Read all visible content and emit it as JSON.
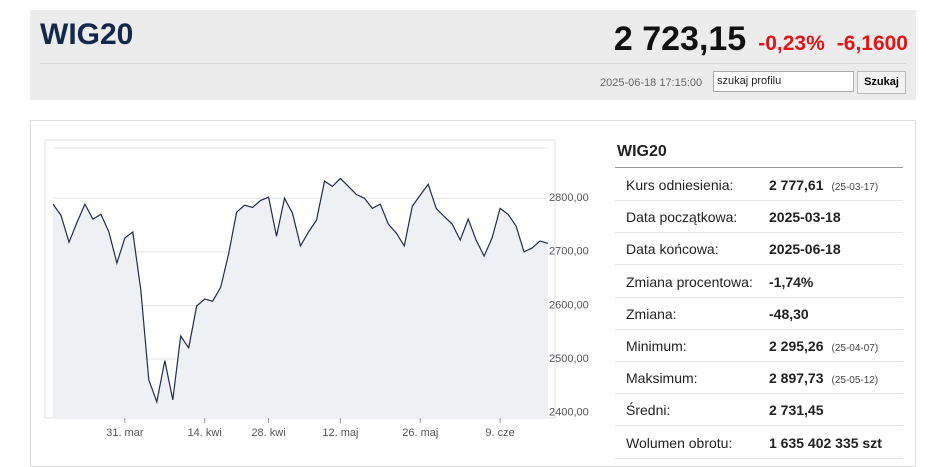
{
  "header": {
    "title": "WIG20",
    "price": "2 723,15",
    "change_pct": "-0,23%",
    "change": "-6,1600",
    "timestamp": "2025-06-18 17:15:00",
    "search_text": "szukaj profilu",
    "search_button": "Szukaj"
  },
  "stats": {
    "title": "WIG20",
    "rows": [
      {
        "label": "Kurs odniesienia:",
        "value": "2 777,61",
        "note": "(25-03-17)"
      },
      {
        "label": "Data początkowa:",
        "value": "2025-03-18"
      },
      {
        "label": "Data końcowa:",
        "value": "2025-06-18"
      },
      {
        "label": "Zmiana procentowa:",
        "value": "-1,74%"
      },
      {
        "label": "Zmiana:",
        "value": "-48,30"
      },
      {
        "label": "Minimum:",
        "value": "2 295,26",
        "note": "(25-04-07)"
      },
      {
        "label": "Maksimum:",
        "value": "2 897,73",
        "note": "(25-05-12)"
      },
      {
        "label": "Średni:",
        "value": "2 731,45"
      },
      {
        "label": "Wolumen obrotu:",
        "value": "1 635 402 335 szt"
      }
    ]
  },
  "chart_data": {
    "type": "line",
    "color": "#1f2d4d",
    "grid": true,
    "categories": [
      null,
      null,
      null,
      null,
      null,
      null,
      null,
      null,
      null,
      "31. mar",
      null,
      null,
      null,
      null,
      null,
      null,
      null,
      null,
      null,
      "14. kwi",
      null,
      null,
      null,
      null,
      null,
      null,
      null,
      "28. kwi",
      null,
      null,
      null,
      null,
      null,
      null,
      null,
      null,
      "12. maj",
      null,
      null,
      null,
      null,
      null,
      null,
      null,
      null,
      null,
      "26. maj",
      null,
      null,
      null,
      null,
      null,
      null,
      null,
      null,
      null,
      "9. cze",
      null,
      null,
      null,
      null,
      null,
      null
    ],
    "values": [
      2789,
      2768,
      2718,
      2755,
      2789,
      2761,
      2770,
      2737,
      2679,
      2726,
      2737,
      2629,
      2461,
      2420,
      2497,
      2424,
      2543,
      2521,
      2599,
      2612,
      2608,
      2634,
      2696,
      2774,
      2787,
      2783,
      2796,
      2802,
      2729,
      2800,
      2772,
      2711,
      2737,
      2759,
      2832,
      2822,
      2837,
      2822,
      2807,
      2800,
      2781,
      2789,
      2752,
      2735,
      2711,
      2785,
      2806,
      2826,
      2781,
      2766,
      2752,
      2722,
      2761,
      2722,
      2692,
      2726,
      2781,
      2770,
      2748,
      2700,
      2707,
      2720,
      2716
    ],
    "ylim": [
      2390,
      2890
    ],
    "yticks": [
      {
        "value": 2400,
        "label": "2400,00"
      },
      {
        "value": 2500,
        "label": "2500,00"
      },
      {
        "value": 2600,
        "label": "2600,00"
      },
      {
        "value": 2700,
        "label": "2700,00"
      },
      {
        "value": 2800,
        "label": "2800,00"
      }
    ]
  }
}
